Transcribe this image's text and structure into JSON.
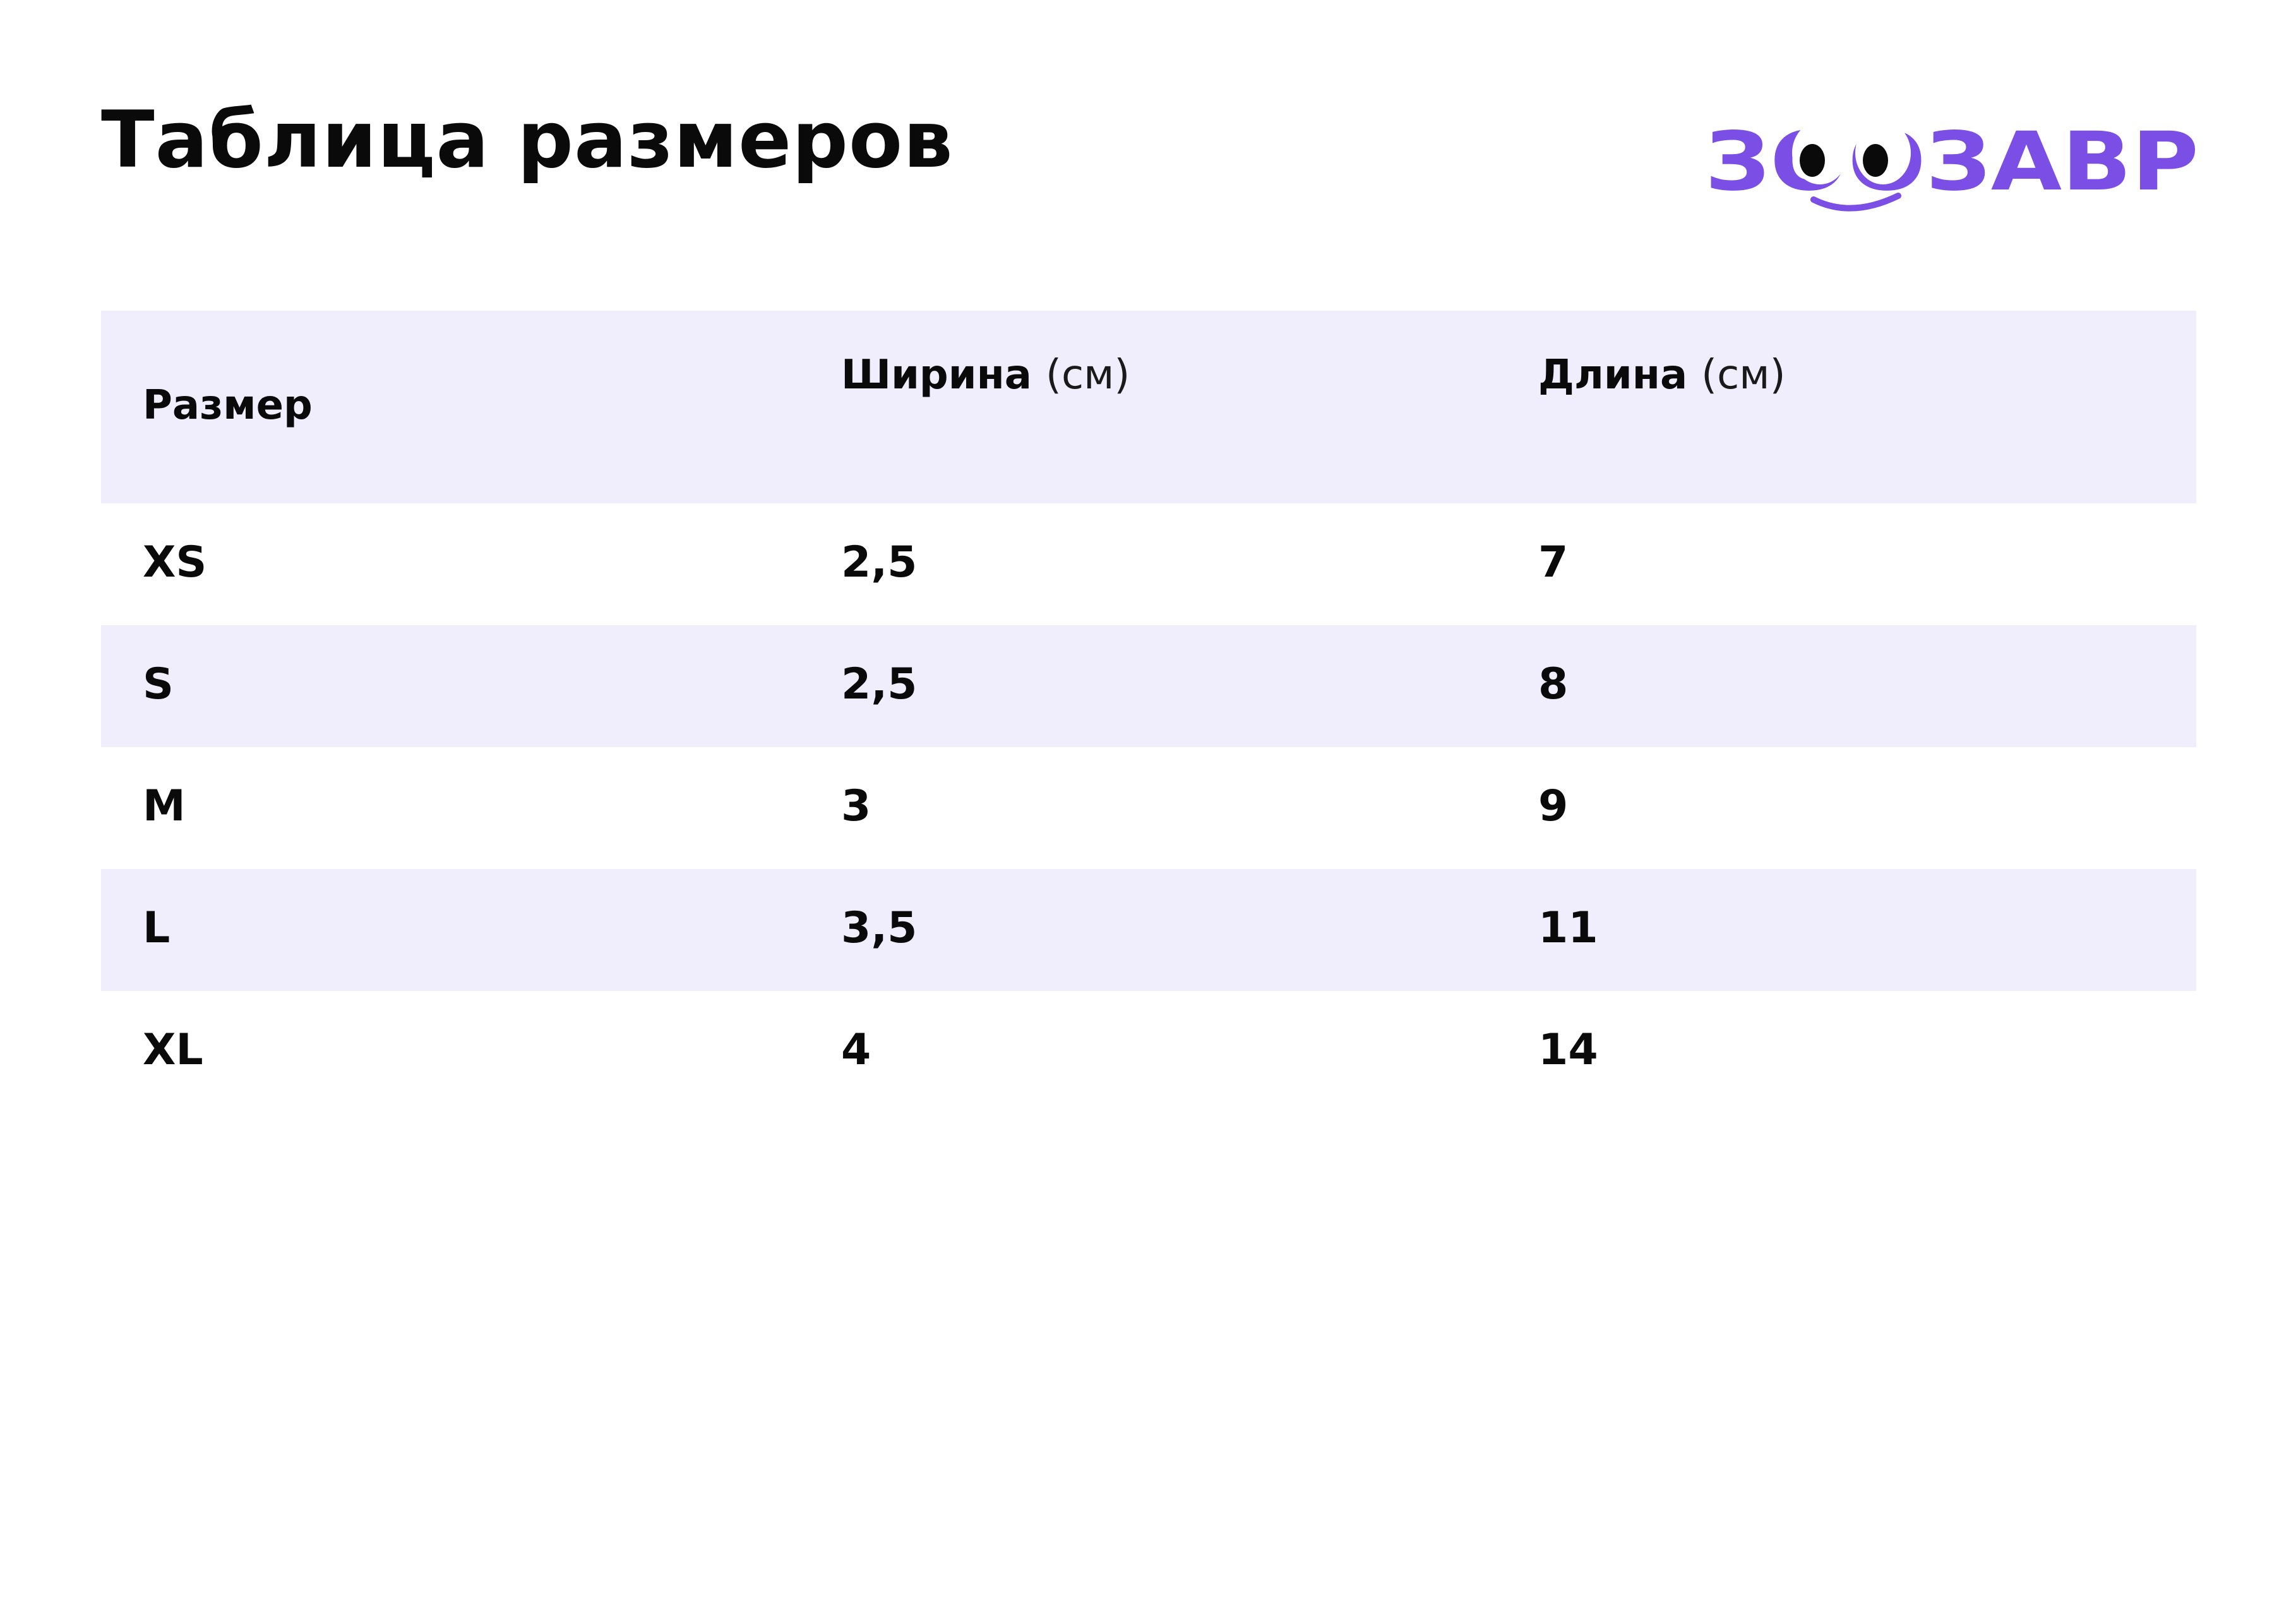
{
  "title": "Таблица размеров",
  "logo": {
    "text": "ЗООЗАВР",
    "brand_color": "#7b4fe6"
  },
  "colors": {
    "row_shade": "#f0eefc",
    "text": "#0a0a0a"
  },
  "table": {
    "headers": [
      {
        "label": "Размер",
        "unit": ""
      },
      {
        "label": "Ширина",
        "unit": "(см)"
      },
      {
        "label": "Длина",
        "unit": "(см)"
      }
    ],
    "rows": [
      [
        "XS",
        "2,5",
        "7"
      ],
      [
        "S",
        "2,5",
        "8"
      ],
      [
        "M",
        "3",
        "9"
      ],
      [
        "L",
        "3,5",
        "11"
      ],
      [
        "XL",
        "4",
        "14"
      ]
    ]
  }
}
